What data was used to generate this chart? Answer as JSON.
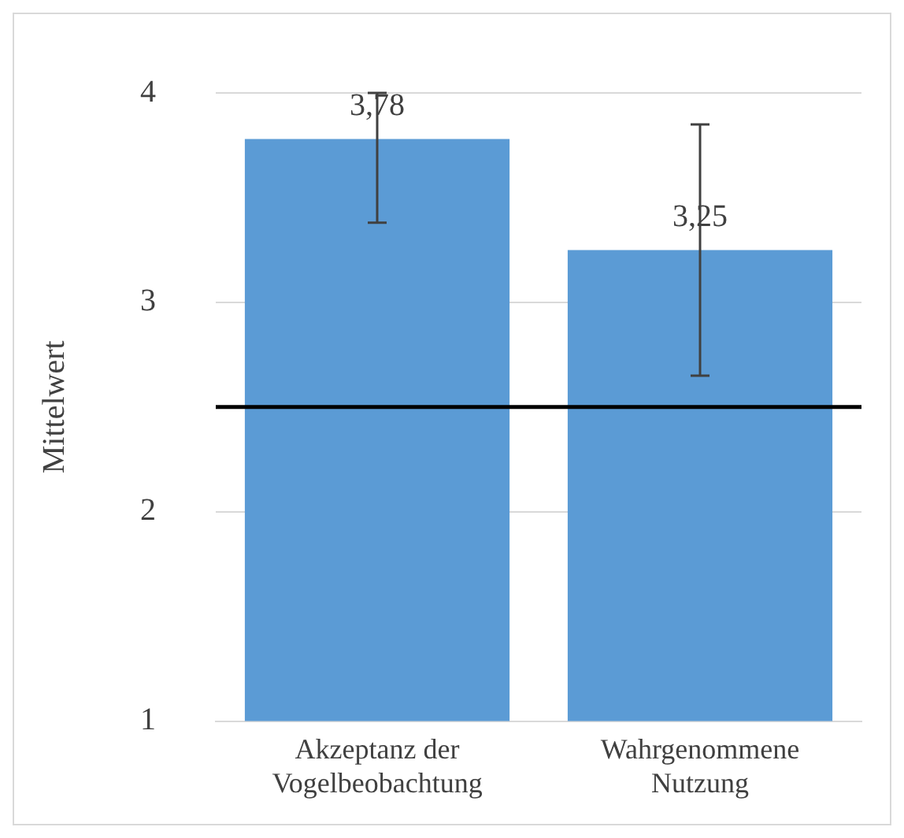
{
  "chart_data": {
    "type": "bar",
    "categories": [
      "Akzeptanz der Vogelbeobachtung",
      "Wahrgenommene Nutzung"
    ],
    "values": [
      3.78,
      3.25
    ],
    "value_labels": [
      "3,78",
      "3,25"
    ],
    "errors": [
      [
        3.38,
        4
      ],
      [
        2.65,
        3.85
      ]
    ],
    "color": "#5b9bd5",
    "ylabel": "Mittelwert",
    "ylim": [
      1,
      4
    ],
    "yticks": [
      1,
      2,
      3,
      4
    ],
    "grid": "y",
    "legend": false,
    "ref_lines": [
      {
        "axis": "y",
        "value": 2.5,
        "color": "#000000"
      }
    ]
  }
}
